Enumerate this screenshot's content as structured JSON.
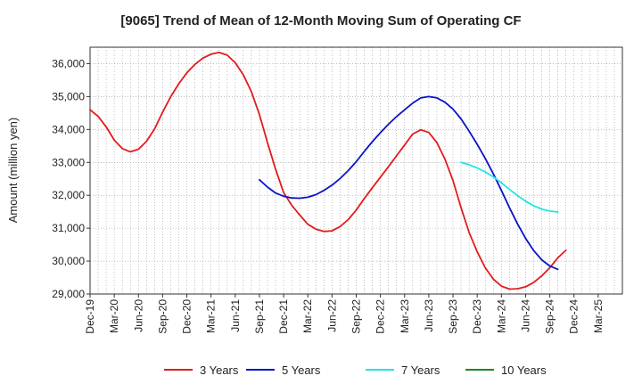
{
  "chart_data": {
    "type": "line",
    "title": "[9065]  Trend of Mean of 12-Month Moving Sum of Operating CF",
    "xlabel": "",
    "ylabel": "Amount (million yen)",
    "ylim": [
      29000,
      36500
    ],
    "yticks": [
      29000,
      30000,
      31000,
      32000,
      33000,
      34000,
      35000,
      36000
    ],
    "ytick_labels": [
      "29,000",
      "30,000",
      "31,000",
      "32,000",
      "33,000",
      "34,000",
      "35,000",
      "36,000"
    ],
    "x_start": "Dec-19",
    "x_months": 66,
    "xtick_labels": [
      "Dec-19",
      "Mar-20",
      "Jun-20",
      "Sep-20",
      "Dec-20",
      "Mar-21",
      "Jun-21",
      "Sep-21",
      "Dec-21",
      "Mar-22",
      "Jun-22",
      "Sep-22",
      "Dec-22",
      "Mar-23",
      "Jun-23",
      "Sep-23",
      "Dec-23",
      "Mar-24",
      "Jun-24",
      "Sep-24",
      "Dec-24",
      "Mar-25"
    ],
    "grid": true,
    "legend_position": "bottom",
    "series": [
      {
        "name": "3 Years",
        "color": "#e31a1c",
        "start_month": 0,
        "values": [
          34600,
          34400,
          34080,
          33680,
          33420,
          33320,
          33400,
          33640,
          34020,
          34530,
          35000,
          35390,
          35720,
          35980,
          36170,
          36290,
          36340,
          36260,
          36030,
          35660,
          35150,
          34450,
          33600,
          32800,
          32080,
          31700,
          31400,
          31120,
          30970,
          30900,
          30920,
          31050,
          31260,
          31550,
          31900,
          32230,
          32550,
          32870,
          33200,
          33530,
          33860,
          33990,
          33910,
          33600,
          33100,
          32450,
          31620,
          30870,
          30280,
          29800,
          29450,
          29240,
          29150,
          29160,
          29220,
          29350,
          29550,
          29800,
          30100,
          30330
        ]
      },
      {
        "name": "5 Years",
        "color": "#0a14c8",
        "start_month": 21,
        "values": [
          32470,
          32250,
          32070,
          31970,
          31920,
          31910,
          31940,
          32020,
          32150,
          32310,
          32510,
          32750,
          33020,
          33330,
          33630,
          33900,
          34160,
          34390,
          34600,
          34800,
          34960,
          35000,
          34960,
          34830,
          34620,
          34320,
          33950,
          33550,
          33120,
          32650,
          32150,
          31620,
          31130,
          30690,
          30320,
          30040,
          29850,
          29750
        ]
      },
      {
        "name": "7 Years",
        "color": "#1de6e6",
        "start_month": 46,
        "values": [
          33000,
          32930,
          32830,
          32710,
          32560,
          32380,
          32180,
          31990,
          31820,
          31680,
          31580,
          31520,
          31490
        ]
      },
      {
        "name": "10 Years",
        "color": "#1a8a1a",
        "start_month": 0,
        "values": []
      }
    ]
  }
}
